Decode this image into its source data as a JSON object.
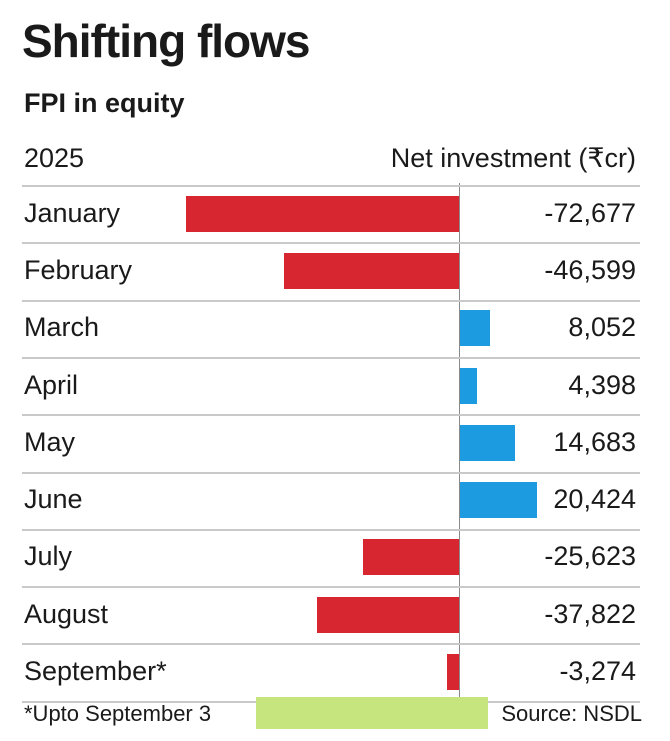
{
  "title": "Shifting flows",
  "subtitle": "FPI in equity",
  "header": {
    "year": "2025",
    "value_header": "Net investment (₹cr)"
  },
  "footnote": "*Upto September 3",
  "source": "Source: NSDL",
  "colors": {
    "negative": "#d7262f",
    "positive": "#1d9be0",
    "strip": "#c6e57f"
  },
  "chart_data": {
    "type": "bar",
    "orientation": "horizontal",
    "categories": [
      "January",
      "February",
      "March",
      "April",
      "May",
      "June",
      "July",
      "August",
      "September*"
    ],
    "values": [
      -72677,
      -46599,
      8052,
      4398,
      14683,
      20424,
      -25623,
      -37822,
      -3274
    ],
    "value_labels": [
      "-72,677",
      "-46,599",
      "8,052",
      "4,398",
      "14,683",
      "20,424",
      "-25,623",
      "-37,822",
      "-3,274"
    ],
    "title": "Shifting flows",
    "subtitle": "FPI in equity",
    "xlabel": "Net investment (₹cr)",
    "ylabel": "2025",
    "xlim": [
      -75000,
      22000
    ],
    "grid": false
  }
}
